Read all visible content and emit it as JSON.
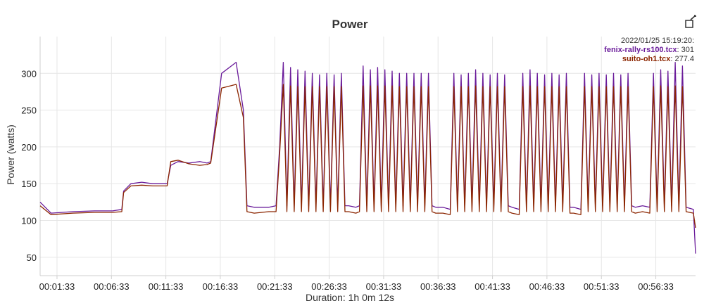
{
  "chart_data": {
    "type": "line",
    "title": "Power",
    "ylabel": "Power (watts)",
    "xlabel": "Duration: 1h 0m 12s",
    "ylim": [
      25,
      350
    ],
    "xlim_seconds": [
      0,
      3612
    ],
    "yticks": [
      "50",
      "100",
      "150",
      "200",
      "250",
      "300"
    ],
    "xticks": [
      "00:01:33",
      "00:06:33",
      "00:11:33",
      "00:16:33",
      "00:21:33",
      "00:26:33",
      "00:31:33",
      "00:36:33",
      "00:41:33",
      "00:46:33",
      "00:51:33",
      "00:56:33"
    ],
    "grid": true,
    "legend": {
      "placement": "top-right",
      "timestamp": "2022/01/25 15:19:20:",
      "entries": [
        {
          "name": "fenix-rally-rs100.tcx",
          "value": "301",
          "color": "#6a1b9a"
        },
        {
          "name": "suito-oh1.tcx",
          "value": "277.4",
          "color": "#8b2500"
        }
      ]
    },
    "series": [
      {
        "name": "fenix-rally-rs100.tcx",
        "color": "#6a1b9a",
        "points": [
          [
            0,
            125
          ],
          [
            60,
            110
          ],
          [
            180,
            112
          ],
          [
            300,
            113
          ],
          [
            400,
            113
          ],
          [
            450,
            115
          ],
          [
            460,
            140
          ],
          [
            500,
            150
          ],
          [
            560,
            152
          ],
          [
            620,
            150
          ],
          [
            680,
            150
          ],
          [
            700,
            150
          ],
          [
            720,
            175
          ],
          [
            760,
            180
          ],
          [
            820,
            178
          ],
          [
            880,
            180
          ],
          [
            920,
            178
          ],
          [
            940,
            180
          ],
          [
            950,
            200
          ],
          [
            1000,
            300
          ],
          [
            1080,
            315
          ],
          [
            1120,
            250
          ],
          [
            1140,
            120
          ],
          [
            1180,
            118
          ],
          [
            1260,
            118
          ],
          [
            1300,
            120
          ],
          [
            1320,
            200
          ],
          [
            1340,
            315
          ],
          [
            1360,
            120
          ],
          [
            1380,
            308
          ],
          [
            1400,
            120
          ],
          [
            1420,
            305
          ],
          [
            1440,
            120
          ],
          [
            1460,
            303
          ],
          [
            1480,
            120
          ],
          [
            1500,
            300
          ],
          [
            1520,
            120
          ],
          [
            1540,
            298
          ],
          [
            1560,
            120
          ],
          [
            1580,
            300
          ],
          [
            1600,
            120
          ],
          [
            1620,
            298
          ],
          [
            1640,
            120
          ],
          [
            1660,
            300
          ],
          [
            1680,
            120
          ],
          [
            1700,
            120
          ],
          [
            1740,
            118
          ],
          [
            1760,
            120
          ],
          [
            1780,
            310
          ],
          [
            1800,
            120
          ],
          [
            1820,
            305
          ],
          [
            1840,
            120
          ],
          [
            1860,
            308
          ],
          [
            1880,
            120
          ],
          [
            1900,
            305
          ],
          [
            1920,
            120
          ],
          [
            1940,
            303
          ],
          [
            1960,
            120
          ],
          [
            1980,
            300
          ],
          [
            2000,
            120
          ],
          [
            2020,
            300
          ],
          [
            2040,
            120
          ],
          [
            2060,
            300
          ],
          [
            2080,
            120
          ],
          [
            2100,
            300
          ],
          [
            2120,
            120
          ],
          [
            2140,
            300
          ],
          [
            2160,
            120
          ],
          [
            2180,
            118
          ],
          [
            2220,
            118
          ],
          [
            2260,
            115
          ],
          [
            2280,
            300
          ],
          [
            2300,
            120
          ],
          [
            2320,
            298
          ],
          [
            2340,
            120
          ],
          [
            2360,
            300
          ],
          [
            2380,
            120
          ],
          [
            2400,
            305
          ],
          [
            2420,
            120
          ],
          [
            2440,
            300
          ],
          [
            2460,
            120
          ],
          [
            2480,
            298
          ],
          [
            2500,
            120
          ],
          [
            2520,
            300
          ],
          [
            2540,
            120
          ],
          [
            2560,
            298
          ],
          [
            2580,
            120
          ],
          [
            2600,
            118
          ],
          [
            2640,
            115
          ],
          [
            2660,
            300
          ],
          [
            2680,
            120
          ],
          [
            2700,
            305
          ],
          [
            2720,
            120
          ],
          [
            2740,
            300
          ],
          [
            2760,
            120
          ],
          [
            2780,
            298
          ],
          [
            2800,
            120
          ],
          [
            2820,
            300
          ],
          [
            2840,
            120
          ],
          [
            2860,
            298
          ],
          [
            2880,
            120
          ],
          [
            2900,
            300
          ],
          [
            2920,
            118
          ],
          [
            2940,
            118
          ],
          [
            2980,
            115
          ],
          [
            3000,
            300
          ],
          [
            3020,
            120
          ],
          [
            3040,
            298
          ],
          [
            3060,
            120
          ],
          [
            3080,
            300
          ],
          [
            3100,
            120
          ],
          [
            3120,
            298
          ],
          [
            3140,
            120
          ],
          [
            3160,
            300
          ],
          [
            3180,
            120
          ],
          [
            3200,
            298
          ],
          [
            3220,
            120
          ],
          [
            3240,
            300
          ],
          [
            3260,
            120
          ],
          [
            3280,
            118
          ],
          [
            3320,
            120
          ],
          [
            3360,
            118
          ],
          [
            3380,
            300
          ],
          [
            3400,
            120
          ],
          [
            3420,
            305
          ],
          [
            3440,
            120
          ],
          [
            3460,
            303
          ],
          [
            3480,
            120
          ],
          [
            3500,
            315
          ],
          [
            3520,
            120
          ],
          [
            3540,
            310
          ],
          [
            3560,
            118
          ],
          [
            3600,
            115
          ],
          [
            3612,
            55
          ]
        ]
      },
      {
        "name": "suito-oh1.tcx",
        "color": "#8b2500",
        "points": [
          [
            0,
            120
          ],
          [
            60,
            108
          ],
          [
            180,
            110
          ],
          [
            300,
            111
          ],
          [
            400,
            111
          ],
          [
            450,
            112
          ],
          [
            460,
            138
          ],
          [
            500,
            147
          ],
          [
            560,
            148
          ],
          [
            620,
            147
          ],
          [
            680,
            147
          ],
          [
            700,
            147
          ],
          [
            720,
            180
          ],
          [
            760,
            182
          ],
          [
            820,
            177
          ],
          [
            880,
            175
          ],
          [
            920,
            176
          ],
          [
            940,
            178
          ],
          [
            950,
            195
          ],
          [
            1000,
            280
          ],
          [
            1080,
            285
          ],
          [
            1120,
            240
          ],
          [
            1140,
            112
          ],
          [
            1180,
            110
          ],
          [
            1260,
            112
          ],
          [
            1300,
            112
          ],
          [
            1320,
            190
          ],
          [
            1340,
            285
          ],
          [
            1360,
            112
          ],
          [
            1380,
            283
          ],
          [
            1400,
            112
          ],
          [
            1420,
            282
          ],
          [
            1440,
            112
          ],
          [
            1460,
            282
          ],
          [
            1480,
            112
          ],
          [
            1500,
            282
          ],
          [
            1520,
            112
          ],
          [
            1540,
            282
          ],
          [
            1560,
            112
          ],
          [
            1580,
            282
          ],
          [
            1600,
            112
          ],
          [
            1620,
            282
          ],
          [
            1640,
            112
          ],
          [
            1660,
            282
          ],
          [
            1680,
            112
          ],
          [
            1700,
            112
          ],
          [
            1740,
            110
          ],
          [
            1760,
            112
          ],
          [
            1780,
            283
          ],
          [
            1800,
            112
          ],
          [
            1820,
            283
          ],
          [
            1840,
            112
          ],
          [
            1860,
            283
          ],
          [
            1880,
            112
          ],
          [
            1900,
            283
          ],
          [
            1920,
            112
          ],
          [
            1940,
            283
          ],
          [
            1960,
            112
          ],
          [
            1980,
            282
          ],
          [
            2000,
            112
          ],
          [
            2020,
            282
          ],
          [
            2040,
            112
          ],
          [
            2060,
            282
          ],
          [
            2080,
            112
          ],
          [
            2100,
            282
          ],
          [
            2120,
            112
          ],
          [
            2140,
            282
          ],
          [
            2160,
            112
          ],
          [
            2180,
            110
          ],
          [
            2220,
            110
          ],
          [
            2260,
            108
          ],
          [
            2280,
            282
          ],
          [
            2300,
            112
          ],
          [
            2320,
            282
          ],
          [
            2340,
            112
          ],
          [
            2360,
            282
          ],
          [
            2380,
            112
          ],
          [
            2400,
            283
          ],
          [
            2420,
            112
          ],
          [
            2440,
            282
          ],
          [
            2460,
            112
          ],
          [
            2480,
            282
          ],
          [
            2500,
            112
          ],
          [
            2520,
            282
          ],
          [
            2540,
            112
          ],
          [
            2560,
            282
          ],
          [
            2580,
            112
          ],
          [
            2600,
            110
          ],
          [
            2640,
            108
          ],
          [
            2660,
            282
          ],
          [
            2680,
            112
          ],
          [
            2700,
            283
          ],
          [
            2720,
            112
          ],
          [
            2740,
            282
          ],
          [
            2760,
            112
          ],
          [
            2780,
            282
          ],
          [
            2800,
            112
          ],
          [
            2820,
            282
          ],
          [
            2840,
            112
          ],
          [
            2860,
            282
          ],
          [
            2880,
            112
          ],
          [
            2900,
            282
          ],
          [
            2920,
            110
          ],
          [
            2940,
            110
          ],
          [
            2980,
            108
          ],
          [
            3000,
            282
          ],
          [
            3020,
            112
          ],
          [
            3040,
            282
          ],
          [
            3060,
            112
          ],
          [
            3080,
            282
          ],
          [
            3100,
            112
          ],
          [
            3120,
            282
          ],
          [
            3140,
            112
          ],
          [
            3160,
            282
          ],
          [
            3180,
            112
          ],
          [
            3200,
            282
          ],
          [
            3220,
            112
          ],
          [
            3240,
            282
          ],
          [
            3260,
            112
          ],
          [
            3280,
            110
          ],
          [
            3320,
            112
          ],
          [
            3360,
            110
          ],
          [
            3380,
            282
          ],
          [
            3400,
            112
          ],
          [
            3420,
            283
          ],
          [
            3440,
            112
          ],
          [
            3460,
            282
          ],
          [
            3480,
            112
          ],
          [
            3500,
            283
          ],
          [
            3520,
            112
          ],
          [
            3540,
            282
          ],
          [
            3560,
            112
          ],
          [
            3600,
            110
          ],
          [
            3612,
            90
          ]
        ]
      }
    ]
  },
  "toolbar": {
    "export_icon": "external-edit-icon"
  }
}
